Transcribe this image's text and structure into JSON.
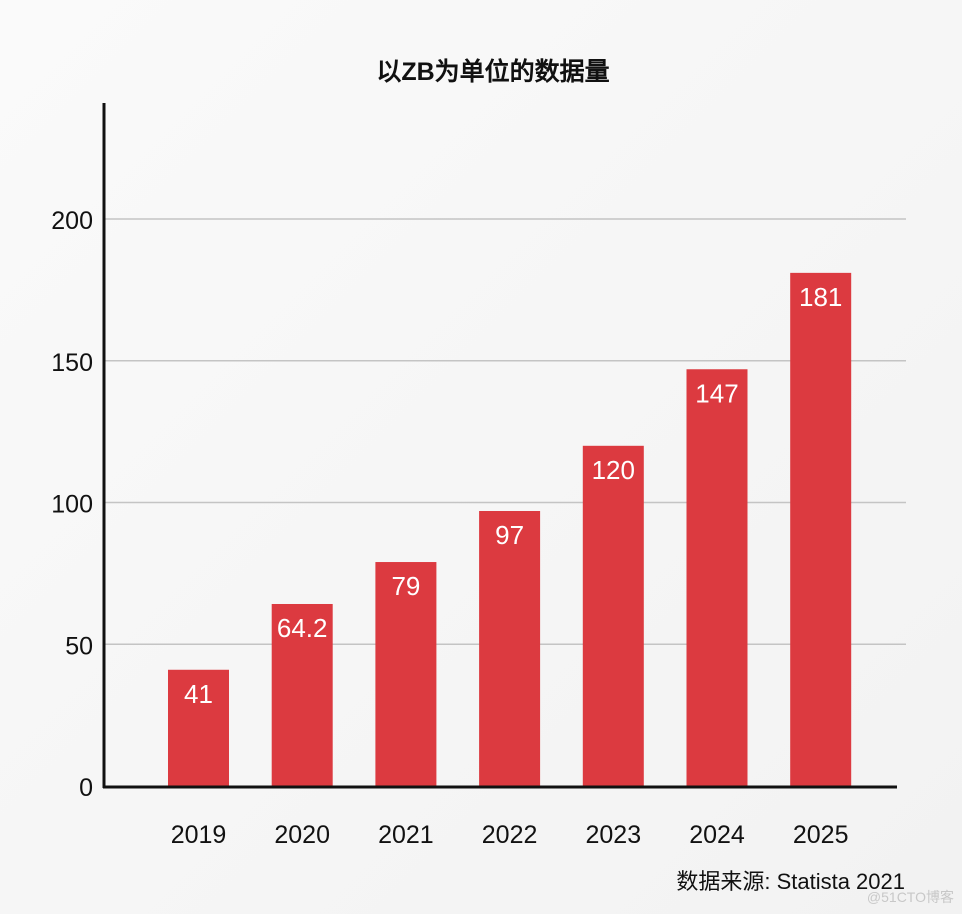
{
  "chart_data": {
    "type": "bar",
    "title": "以ZB为单位的数据量",
    "categories": [
      "2019",
      "2020",
      "2021",
      "2022",
      "2023",
      "2024",
      "2025"
    ],
    "values": [
      41,
      64.2,
      79,
      97,
      120,
      147,
      181
    ],
    "data_labels": [
      "41",
      "64.2",
      "79",
      "97",
      "120",
      "147",
      "181"
    ],
    "xlabel": "",
    "ylabel": "",
    "ylim": [
      0,
      240
    ],
    "yticks": [
      0,
      50,
      100,
      150,
      200
    ],
    "grid": true,
    "bar_color": "#dc3a40",
    "source": "数据来源: Statista 2021"
  },
  "watermark": "@51CTO博客"
}
